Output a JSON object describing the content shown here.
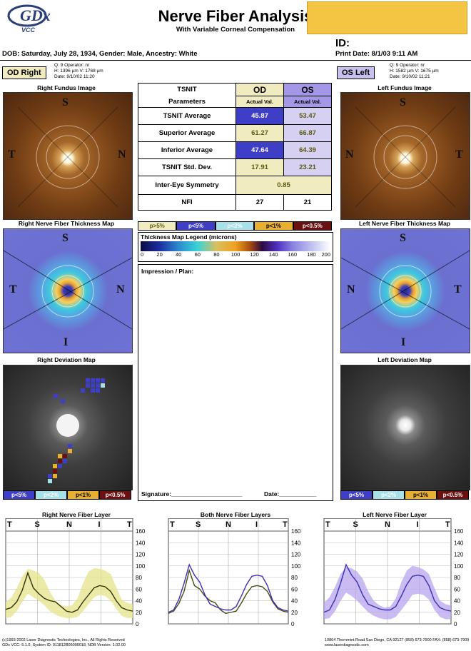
{
  "header": {
    "logo_text": "GDx",
    "logo_sub": "VCC",
    "title": "Nerve Fiber Analysis",
    "subtitle": "With Variable Corneal Compensation",
    "id_label": "ID:",
    "print_date": "Print Date: 8/1/03 9:11 AM",
    "dob_line": "DOB: Saturday, July 28, 1934, Gender: Male, Ancestry: White"
  },
  "od": {
    "badge": "OD Right",
    "meta": [
      "Q: 9        Operator: nr",
      "H: 1396 µm V: 1768 µm",
      "Date: 9/10/02 11:20"
    ],
    "fundus_title": "Right Fundus Image",
    "thickness_title": "Right Nerve Fiber Thickness Map",
    "deviation_title": "Right Deviation Map",
    "layer_title": "Right Nerve Fiber Layer"
  },
  "os": {
    "badge": "OS  Left",
    "meta": [
      "Q: 9        Operator: nr",
      "H: 1582 µm V: 1675 µm",
      "Date: 9/10/02 11:21"
    ],
    "fundus_title": "Left Fundus Image",
    "thickness_title": "Left Nerve Fiber Thickness Map",
    "deviation_title": "Left Deviation Map",
    "layer_title": "Left Nerve Fiber Layer"
  },
  "quadrants": {
    "s": "S",
    "t": "T",
    "n": "N",
    "i": "I"
  },
  "table": {
    "param_head1": "TSNIT",
    "param_head2": "Parameters",
    "od_head": "OD",
    "os_head": "OS",
    "sub_head": "Actual Val.",
    "rows": [
      {
        "label": "TSNIT Average",
        "od": "45.87",
        "os": "53.47"
      },
      {
        "label": "Superior Average",
        "od": "61.27",
        "os": "66.87"
      },
      {
        "label": "Inferior Average",
        "od": "47.64",
        "os": "64.39"
      },
      {
        "label": "TSNIT Std. Dev.",
        "od": "17.91",
        "os": "23.21"
      }
    ],
    "symmetry_label": "Inter-Eye Symmetry",
    "symmetry_value": "0.85",
    "nfi_label": "NFI",
    "nfi_od": "27",
    "nfi_os": "21"
  },
  "prob_legend": [
    "p>5%",
    "p<5%",
    "p<2%",
    "p<1%",
    "p<0.5%"
  ],
  "prob_colors": [
    "#f0ecc0",
    "#3f3ec6",
    "#a8e0ea",
    "#e8b030",
    "#6a1010"
  ],
  "thickness_legend": {
    "title": "Thickness Map Legend (microns)",
    "ticks": [
      "0",
      "20",
      "40",
      "60",
      "80",
      "100",
      "120",
      "140",
      "160",
      "180",
      "200"
    ]
  },
  "deviation_legend": [
    "p<5%",
    "p<2%",
    "p<1%",
    "p<0.5%"
  ],
  "impression_label": "Impression / Plan:",
  "signature_label": "Signature:_____________________",
  "date_label": "Date:___________",
  "charts_titles": {
    "both": "Both Nerve Fiber Layers"
  },
  "chart_data": [
    {
      "type": "line",
      "title": "Right Nerve Fiber Layer",
      "x_labels": [
        "T",
        "S",
        "N",
        "I",
        "T"
      ],
      "ylim": [
        0,
        160
      ],
      "yticks": [
        0,
        20,
        40,
        60,
        80,
        100,
        120,
        140,
        160
      ],
      "series": [
        {
          "values": [
            25,
            28,
            38,
            58,
            88,
            62,
            52,
            44,
            40,
            38,
            30,
            22,
            20,
            24,
            38,
            50,
            62,
            66,
            64,
            56,
            40,
            28,
            24,
            22
          ]
        }
      ],
      "band": {
        "lower": [
          10,
          12,
          22,
          38,
          52,
          46,
          40,
          32,
          22,
          16,
          12,
          10,
          10,
          12,
          22,
          34,
          46,
          50,
          48,
          40,
          26,
          14,
          10,
          10
        ],
        "upper": [
          38,
          45,
          62,
          82,
          95,
          92,
          88,
          76,
          55,
          40,
          32,
          30,
          32,
          44,
          70,
          90,
          96,
          95,
          92,
          86,
          64,
          42,
          36,
          34
        ]
      },
      "colors": {
        "line": "#333300",
        "band": "#e4e48a"
      }
    },
    {
      "type": "line",
      "title": "Both Nerve Fiber Layers",
      "x_labels": [
        "T",
        "S",
        "N",
        "I",
        "T"
      ],
      "ylim": [
        0,
        160
      ],
      "yticks": [
        0,
        20,
        40,
        60,
        80,
        100,
        120,
        140,
        160
      ],
      "series": [
        {
          "values": [
            18,
            22,
            35,
            56,
            92,
            66,
            60,
            48,
            40,
            36,
            24,
            18,
            20,
            22,
            36,
            52,
            64,
            66,
            64,
            56,
            38,
            26,
            22,
            20
          ]
        },
        {
          "values": [
            20,
            24,
            42,
            70,
            102,
            84,
            72,
            50,
            34,
            30,
            26,
            24,
            24,
            30,
            48,
            68,
            82,
            84,
            82,
            66,
            40,
            28,
            24,
            22
          ]
        }
      ],
      "colors": {
        "series": [
          "#4a4a10",
          "#3a30b0"
        ]
      }
    },
    {
      "type": "line",
      "title": "Left Nerve Fiber Layer",
      "x_labels": [
        "T",
        "S",
        "N",
        "I",
        "T"
      ],
      "ylim": [
        0,
        160
      ],
      "yticks": [
        0,
        20,
        40,
        60,
        80,
        100,
        120,
        140,
        160
      ],
      "series": [
        {
          "values": [
            20,
            24,
            42,
            70,
            102,
            84,
            72,
            50,
            34,
            30,
            26,
            24,
            24,
            30,
            48,
            68,
            82,
            84,
            82,
            66,
            40,
            28,
            24,
            22
          ]
        }
      ],
      "band": {
        "lower": [
          8,
          10,
          22,
          40,
          54,
          48,
          40,
          30,
          20,
          14,
          10,
          8,
          8,
          12,
          24,
          36,
          50,
          52,
          50,
          42,
          24,
          12,
          8,
          8
        ],
        "upper": [
          36,
          46,
          64,
          86,
          98,
          96,
          90,
          78,
          56,
          40,
          32,
          28,
          30,
          44,
          72,
          92,
          100,
          98,
          94,
          86,
          62,
          40,
          34,
          32
        ]
      },
      "colors": {
        "line": "#3a30b0",
        "band": "#b8a4ee"
      }
    }
  ],
  "footer": {
    "left1": "(c)1993-2002 Laser Diagnostic Technologies, Inc., All Rights Reserved",
    "left2": "GDx VCC: 5.1.0, System ID: 011812B06000018, NDB Version: 1.02.00",
    "right1": "10864 Thornmint Road San Diego, CA 92127 (858) 673-7900 FAX: (858) 673-7909",
    "right2": "www.laserdiagnostic.com"
  }
}
